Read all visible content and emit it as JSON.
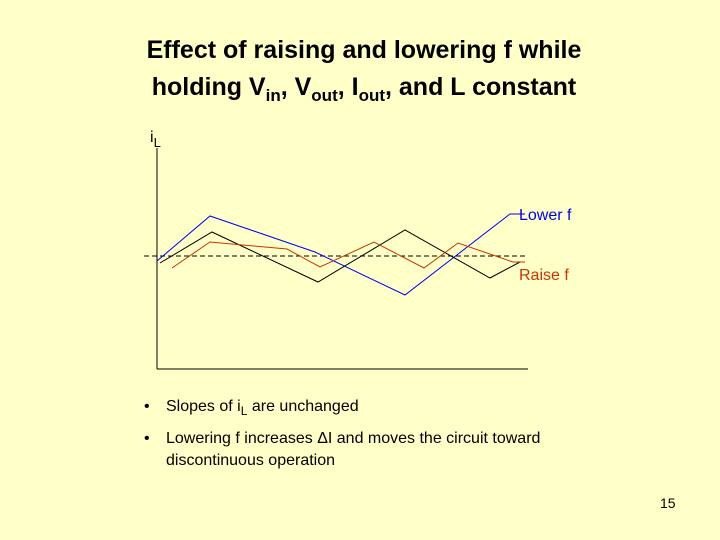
{
  "slide": {
    "title_line1": "Effect of raising and lowering f while",
    "title_line2_p1": "holding V",
    "title_line2_sub1": "in",
    "title_line2_p2": ", V",
    "title_line2_sub2": "out",
    "title_line2_p3": ", I",
    "title_line2_sub3": "out",
    "title_line2_p4": ", and L constant",
    "page_number": "15"
  },
  "diagram": {
    "axis_label_main": "i",
    "axis_label_sub": "L",
    "label_lower": "Lower f",
    "label_raise": "Raise f",
    "colors": {
      "lower": "#0000ff",
      "nominal": "#000000",
      "raise": "#cc3300",
      "axis": "#000000"
    }
  },
  "bullets": [
    {
      "bullet": "•",
      "text": "Slopes of i",
      "sub": "L",
      "text2": " are unchanged"
    },
    {
      "bullet": "•",
      "text": "Lowering f increases ΔI and moves the circuit toward",
      "text_line2": "discontinuous operation"
    }
  ]
}
